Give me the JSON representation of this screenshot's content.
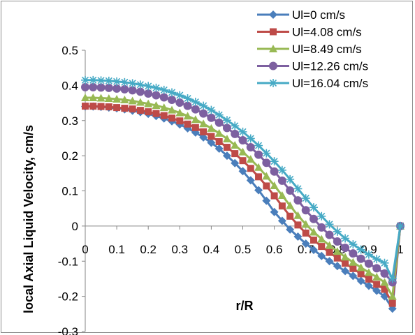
{
  "chart_data": {
    "type": "line",
    "title": "",
    "xlabel": "r/R",
    "ylabel": "local Axial Liquid Velocity, cm/s",
    "xlim": [
      0,
      1
    ],
    "ylim": [
      -0.3,
      0.5
    ],
    "x_ticks": [
      "0",
      "0.1",
      "0.2",
      "0.3",
      "0.4",
      "0.5",
      "0.6",
      "0.7",
      "0.8",
      "0.9",
      "1"
    ],
    "y_ticks": [
      "-0.3",
      "-0.2",
      "-0.1",
      "0",
      "0.1",
      "0.2",
      "0.3",
      "0.4",
      "0.5"
    ],
    "grid": false,
    "legend_position": "top-right",
    "x": [
      0,
      0.025,
      0.05,
      0.075,
      0.1,
      0.125,
      0.15,
      0.175,
      0.2,
      0.225,
      0.25,
      0.275,
      0.3,
      0.325,
      0.35,
      0.375,
      0.4,
      0.425,
      0.45,
      0.475,
      0.5,
      0.525,
      0.55,
      0.575,
      0.6,
      0.625,
      0.65,
      0.675,
      0.7,
      0.725,
      0.75,
      0.775,
      0.8,
      0.825,
      0.85,
      0.875,
      0.9,
      0.925,
      0.95,
      0.975,
      1
    ],
    "series": [
      {
        "name": "Ul=0 cm/s",
        "color": "#4a7ebb",
        "marker": "diamond",
        "values": [
          0.34,
          0.34,
          0.339,
          0.337,
          0.335,
          0.332,
          0.328,
          0.324,
          0.319,
          0.313,
          0.306,
          0.298,
          0.289,
          0.278,
          0.266,
          0.252,
          0.237,
          0.22,
          0.2,
          0.179,
          0.156,
          0.13,
          0.102,
          0.072,
          0.04,
          0.015,
          -0.01,
          -0.03,
          -0.05,
          -0.068,
          -0.085,
          -0.1,
          -0.114,
          -0.128,
          -0.142,
          -0.156,
          -0.17,
          -0.184,
          -0.2,
          -0.235,
          0.0
        ]
      },
      {
        "name": "Ul=4.08 cm/s",
        "color": "#be4b48",
        "marker": "square",
        "values": [
          0.341,
          0.341,
          0.34,
          0.339,
          0.337,
          0.335,
          0.333,
          0.329,
          0.325,
          0.32,
          0.314,
          0.307,
          0.299,
          0.29,
          0.28,
          0.268,
          0.255,
          0.24,
          0.224,
          0.206,
          0.186,
          0.164,
          0.14,
          0.114,
          0.086,
          0.057,
          0.028,
          0.003,
          -0.02,
          -0.04,
          -0.058,
          -0.075,
          -0.091,
          -0.106,
          -0.121,
          -0.136,
          -0.151,
          -0.166,
          -0.18,
          -0.22,
          0.0
        ]
      },
      {
        "name": "Ul=8.49 cm/s",
        "color": "#98b954",
        "marker": "triangle",
        "values": [
          0.365,
          0.365,
          0.364,
          0.363,
          0.361,
          0.359,
          0.356,
          0.352,
          0.348,
          0.343,
          0.337,
          0.33,
          0.322,
          0.313,
          0.303,
          0.291,
          0.278,
          0.264,
          0.248,
          0.23,
          0.211,
          0.19,
          0.167,
          0.142,
          0.115,
          0.087,
          0.058,
          0.03,
          0.005,
          -0.017,
          -0.037,
          -0.055,
          -0.072,
          -0.088,
          -0.103,
          -0.118,
          -0.132,
          -0.145,
          -0.16,
          -0.2,
          0.0
        ]
      },
      {
        "name": "Ul=12.26 cm/s",
        "color": "#7d60a0",
        "marker": "circle",
        "values": [
          0.395,
          0.395,
          0.394,
          0.393,
          0.391,
          0.389,
          0.386,
          0.382,
          0.377,
          0.372,
          0.366,
          0.359,
          0.351,
          0.342,
          0.332,
          0.32,
          0.308,
          0.294,
          0.279,
          0.262,
          0.244,
          0.224,
          0.203,
          0.18,
          0.155,
          0.129,
          0.101,
          0.073,
          0.045,
          0.02,
          -0.004,
          -0.025,
          -0.044,
          -0.062,
          -0.078,
          -0.093,
          -0.107,
          -0.12,
          -0.135,
          -0.16,
          0.0
        ]
      },
      {
        "name": "Ul=16.04 cm/s",
        "color": "#46aac5",
        "marker": "star",
        "values": [
          0.415,
          0.415,
          0.414,
          0.413,
          0.411,
          0.409,
          0.406,
          0.402,
          0.398,
          0.393,
          0.387,
          0.38,
          0.372,
          0.363,
          0.353,
          0.342,
          0.33,
          0.316,
          0.301,
          0.285,
          0.268,
          0.249,
          0.229,
          0.207,
          0.184,
          0.159,
          0.133,
          0.106,
          0.079,
          0.053,
          0.028,
          0.005,
          -0.016,
          -0.035,
          -0.052,
          -0.067,
          -0.081,
          -0.094,
          -0.105,
          -0.15,
          0.0
        ]
      }
    ]
  }
}
